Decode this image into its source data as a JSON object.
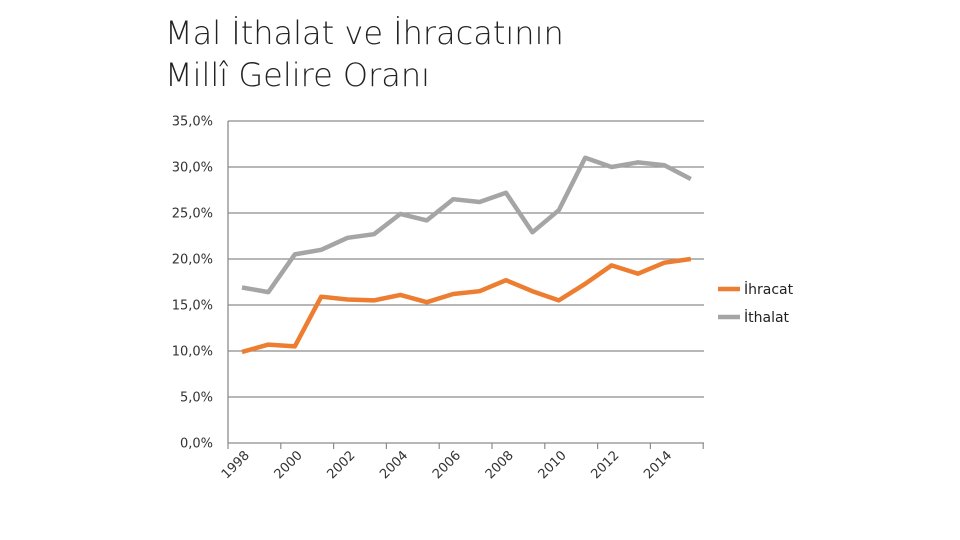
{
  "slide": {
    "title_line1": "Mal İthalat ve İhracatının",
    "title_line2": "Millî Gelire Oranı"
  },
  "chart_data": {
    "type": "line",
    "title": "Mal İthalat ve İhracatının Millî Gelire Oranı",
    "x": [
      1998,
      1999,
      2000,
      2001,
      2002,
      2003,
      2004,
      2005,
      2006,
      2007,
      2008,
      2009,
      2010,
      2011,
      2012,
      2013,
      2014,
      2015
    ],
    "x_tick_labels": [
      "1998",
      "2000",
      "2002",
      "2004",
      "2006",
      "2008",
      "2010",
      "2012",
      "2014"
    ],
    "y_tick_labels": [
      "0,0%",
      "5,0%",
      "10,0%",
      "15,0%",
      "20,0%",
      "25,0%",
      "30,0%",
      "35,0%"
    ],
    "ylim": [
      0,
      35
    ],
    "grid": true,
    "legend": "right",
    "series": [
      {
        "name": "İhracat",
        "color": "#ED7D31",
        "values": [
          9.9,
          10.7,
          10.5,
          15.9,
          15.6,
          15.5,
          16.1,
          15.3,
          16.2,
          16.5,
          17.7,
          16.5,
          15.5,
          17.3,
          19.3,
          18.4,
          19.6,
          20.0
        ]
      },
      {
        "name": "İthalat",
        "color": "#A5A5A5",
        "values": [
          16.9,
          16.4,
          20.5,
          21.0,
          22.3,
          22.7,
          24.9,
          24.2,
          26.5,
          26.2,
          27.2,
          22.9,
          25.3,
          31.0,
          30.0,
          30.5,
          30.2,
          28.7
        ]
      }
    ]
  }
}
